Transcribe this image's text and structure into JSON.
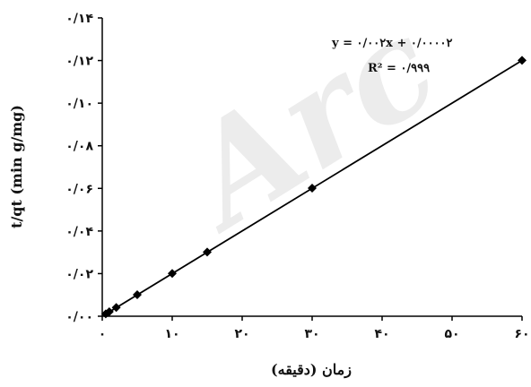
{
  "chart_data": {
    "type": "scatter",
    "title": "",
    "xlabel": "زمان (دقیقه)",
    "ylabel": "t/qt (min g/mg)",
    "xlim": [
      0,
      60
    ],
    "ylim": [
      0,
      0.14
    ],
    "x_ticks": [
      0,
      10,
      20,
      30,
      40,
      50,
      60
    ],
    "x_tick_labels": [
      "۰",
      "۱۰",
      "۲۰",
      "۳۰",
      "۴۰",
      "۵۰",
      "۶۰"
    ],
    "y_ticks": [
      0,
      0.02,
      0.04,
      0.06,
      0.08,
      0.1,
      0.12,
      0.14
    ],
    "y_tick_labels": [
      "۰/۰۰",
      "۰/۰۲",
      "۰/۰۴",
      "۰/۰۶",
      "۰/۰۸",
      "۰/۱۰",
      "۰/۱۲",
      "۰/۱۴"
    ],
    "grid": false,
    "marker": "diamond",
    "marker_color": "#000000",
    "x": [
      0.5,
      1,
      2,
      5,
      10,
      15,
      30,
      60
    ],
    "y": [
      0.0011,
      0.0021,
      0.0041,
      0.0101,
      0.0201,
      0.0301,
      0.0601,
      0.1201
    ],
    "trendline": {
      "type": "linear",
      "slope": 0.002,
      "intercept": 2e-05,
      "equation": "y = ۰/۰۰۲x + ۰/۰۰۰۰۲",
      "r_squared": "R² = ۰/۹۹۹"
    },
    "watermark": "Arc"
  }
}
